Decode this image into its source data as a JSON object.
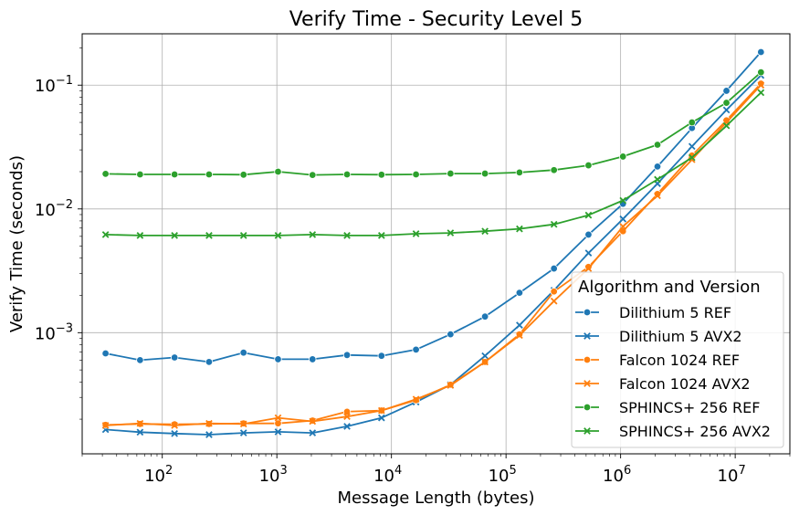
{
  "chart_data": {
    "type": "line",
    "title": "Verify Time - Security Level 5",
    "xlabel": "Message Length (bytes)",
    "ylabel": "Verify Time (seconds)",
    "xscale": "log",
    "yscale": "log",
    "xlim": [
      20,
      30000000
    ],
    "ylim": [
      0.000105,
      0.26
    ],
    "grid": true,
    "legend": {
      "title": "Algorithm and Version",
      "placement": "lower-right"
    },
    "x_ticks": [
      {
        "value": 100,
        "base": "10",
        "exp": "2"
      },
      {
        "value": 1000,
        "base": "10",
        "exp": "3"
      },
      {
        "value": 10000,
        "base": "10",
        "exp": "4"
      },
      {
        "value": 100000,
        "base": "10",
        "exp": "5"
      },
      {
        "value": 1000000,
        "base": "10",
        "exp": "6"
      },
      {
        "value": 10000000,
        "base": "10",
        "exp": "7"
      }
    ],
    "y_ticks": [
      {
        "value": 0.001,
        "base": "10",
        "exp": "−3"
      },
      {
        "value": 0.01,
        "base": "10",
        "exp": "−2"
      },
      {
        "value": 0.1,
        "base": "10",
        "exp": "−1"
      }
    ],
    "x": [
      32,
      64,
      128,
      256,
      512,
      1024,
      2048,
      4096,
      8192,
      16384,
      32768,
      65536,
      131072,
      262144,
      524288,
      1048576,
      2097152,
      4194304,
      8388608,
      16777216
    ],
    "series": [
      {
        "name": "Dilithium 5 REF",
        "color": "#1f77b4",
        "marker": "circle",
        "values": [
          0.00068,
          0.0006,
          0.00063,
          0.00058,
          0.00069,
          0.00061,
          0.00061,
          0.00066,
          0.00065,
          0.00073,
          0.00097,
          0.00135,
          0.0021,
          0.0033,
          0.0062,
          0.011,
          0.022,
          0.045,
          0.09,
          0.185
        ]
      },
      {
        "name": "Dilithium 5 AVX2",
        "color": "#1f77b4",
        "marker": "x",
        "values": [
          0.000165,
          0.000157,
          0.000153,
          0.00015,
          0.000155,
          0.000158,
          0.000155,
          0.000175,
          0.000205,
          0.000275,
          0.00038,
          0.00065,
          0.00115,
          0.0022,
          0.0044,
          0.0083,
          0.016,
          0.032,
          0.063,
          0.12
        ]
      },
      {
        "name": "Falcon 1024 REF",
        "color": "#ff7f0e",
        "marker": "circle",
        "values": [
          0.00018,
          0.000183,
          0.000182,
          0.000183,
          0.000185,
          0.000185,
          0.000195,
          0.00023,
          0.000235,
          0.000285,
          0.00038,
          0.00058,
          0.00097,
          0.00215,
          0.0034,
          0.0066,
          0.0132,
          0.027,
          0.052,
          0.103
        ]
      },
      {
        "name": "Falcon 1024 AVX2",
        "color": "#ff7f0e",
        "marker": "x",
        "values": [
          0.000178,
          0.000185,
          0.000178,
          0.000185,
          0.000183,
          0.000205,
          0.000192,
          0.00021,
          0.000235,
          0.00029,
          0.000375,
          0.00058,
          0.00095,
          0.0018,
          0.0033,
          0.0072,
          0.0128,
          0.025,
          0.05,
          0.1
        ]
      },
      {
        "name": "SPHINCS+ 256 REF",
        "color": "#2ca02c",
        "marker": "circle",
        "values": [
          0.0192,
          0.019,
          0.019,
          0.019,
          0.0189,
          0.02,
          0.0188,
          0.019,
          0.0189,
          0.019,
          0.0193,
          0.0193,
          0.0197,
          0.0206,
          0.0225,
          0.0265,
          0.033,
          0.05,
          0.072,
          0.127
        ]
      },
      {
        "name": "SPHINCS+ 256 AVX2",
        "color": "#2ca02c",
        "marker": "x",
        "values": [
          0.0062,
          0.0061,
          0.0061,
          0.0061,
          0.0061,
          0.0061,
          0.0062,
          0.0061,
          0.0061,
          0.0063,
          0.0064,
          0.0066,
          0.0069,
          0.0075,
          0.0089,
          0.0117,
          0.0173,
          0.026,
          0.047,
          0.087
        ]
      }
    ]
  }
}
